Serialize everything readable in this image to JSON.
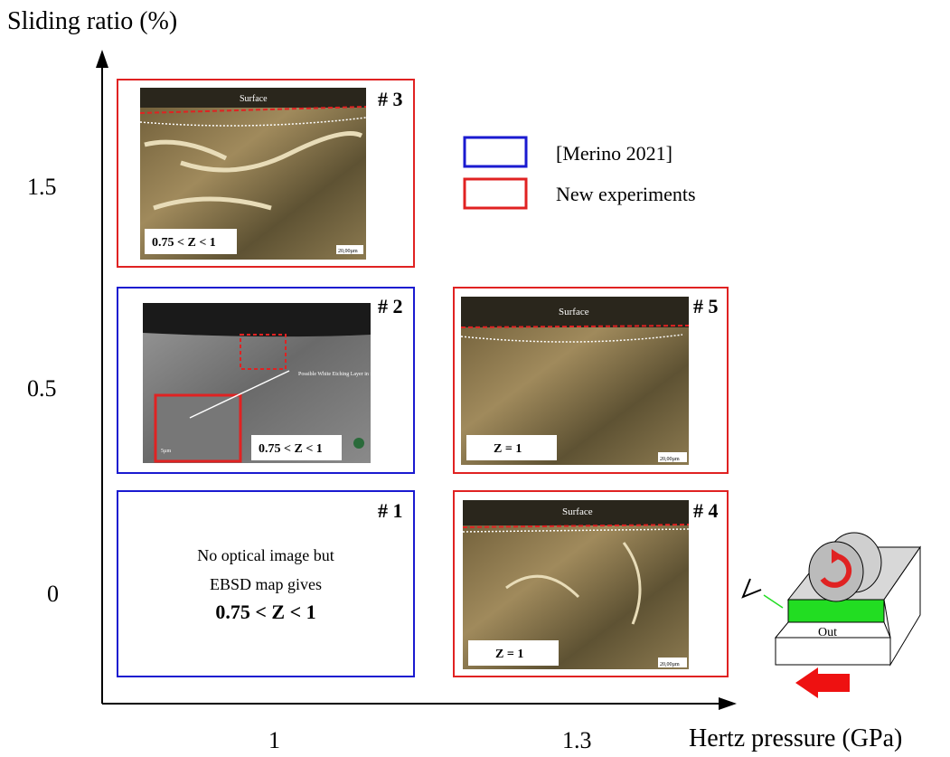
{
  "axes": {
    "y_label": "Sliding ratio (%)",
    "x_label": "Hertz pressure (GPa)",
    "y_ticks": [
      "1.5",
      "0.5",
      "0"
    ],
    "x_ticks": [
      "1",
      "1.3"
    ]
  },
  "legend": [
    {
      "label": "[Merino 2021]",
      "color": "#1a1ad0"
    },
    {
      "label": "New experiments",
      "color": "#e02222"
    }
  ],
  "panels": [
    {
      "id": "# 3",
      "color": "#e02222",
      "surface": "Surface",
      "z": "0.75 < Z < 1",
      "scale": "20,00µm"
    },
    {
      "id": "# 2",
      "color": "#1a1ad0",
      "note": "Possible White Etching Layer in formation",
      "z": "0.75 < Z < 1",
      "scale": "5µm"
    },
    {
      "id": "# 5",
      "color": "#e02222",
      "surface": "Surface",
      "z": "Z = 1",
      "scale": "20,00µm"
    },
    {
      "id": "# 1",
      "color": "#1a1ad0",
      "lines": [
        "No optical image but",
        "EBSD map gives",
        "0.75 < Z < 1"
      ]
    },
    {
      "id": "# 4",
      "color": "#e02222",
      "surface": "Surface",
      "z": "Z = 1",
      "scale": "20,00µm"
    }
  ],
  "schematic": {
    "label": "Out"
  }
}
